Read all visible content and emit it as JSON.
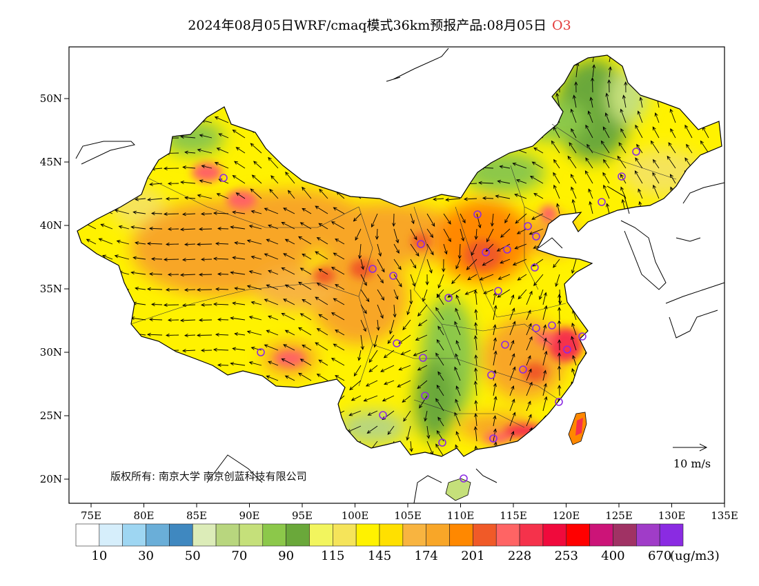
{
  "title": {
    "main": "2024年08月05日WRF/cmaq模式36km预报产品:08月05日",
    "species": "O3",
    "species_color": "#e33a3a"
  },
  "map": {
    "lat_ticks": [
      "50N",
      "45N",
      "40N",
      "35N",
      "30N",
      "25N",
      "20N"
    ],
    "lon_ticks": [
      "75E",
      "80E",
      "85E",
      "90E",
      "95E",
      "100E",
      "105E",
      "110E",
      "115E",
      "120E",
      "125E",
      "130E",
      "135E"
    ],
    "reference_vector_label": "10 m/s",
    "copyright": "版权所有: 南京大学  南京创蓝科技有限公司",
    "city_marker_color": "#8a2be2",
    "ocean_color": "#ffffff"
  },
  "colorbar": {
    "colors": [
      "#ffffff",
      "#d6eefb",
      "#9ed6f2",
      "#6aaed8",
      "#3f88c0",
      "#dcecb8",
      "#b8d67e",
      "#c5e07a",
      "#8cc84a",
      "#6aa83a",
      "#f2f55e",
      "#f5e45a",
      "#fff200",
      "#ffe000",
      "#f8b440",
      "#f8a628",
      "#ff8800",
      "#f05a28",
      "#ff6464",
      "#f5324b",
      "#f00a3c",
      "#ff0000",
      "#cc1478",
      "#a03264",
      "#a03cc8",
      "#8a2be2"
    ],
    "labels": [
      "10",
      "30",
      "50",
      "70",
      "90",
      "115",
      "145",
      "174",
      "201",
      "228",
      "253",
      "400",
      "670"
    ],
    "unit": "(ug/m3)"
  }
}
